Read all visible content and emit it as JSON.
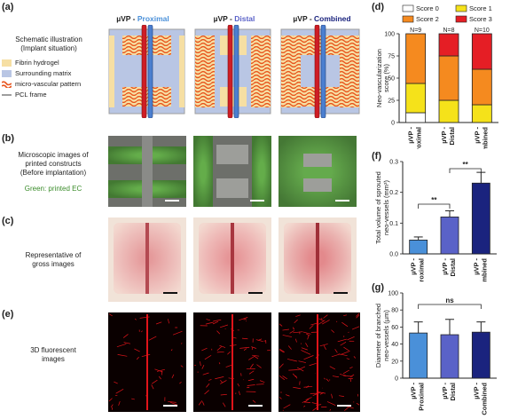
{
  "panels": {
    "a": "(a)",
    "b": "(b)",
    "c": "(c)",
    "d": "(d)",
    "e": "(e)",
    "f": "(f)",
    "g": "(g)"
  },
  "columns": [
    {
      "prefix": "µVP - ",
      "suffix": "Proximal",
      "color": "#4a90d9"
    },
    {
      "prefix": "µVP - ",
      "suffix": "Distal",
      "color": "#5a62c8"
    },
    {
      "prefix": "µVP - ",
      "suffix": "Combined",
      "color": "#1a237e"
    }
  ],
  "legend_a": {
    "title_line1": "Schematic illustration",
    "title_line2": "(Implant situation)",
    "items": [
      {
        "label": "Fibrin hydrogel",
        "color": "#f6dfa3"
      },
      {
        "label": "Surrounding matrix",
        "color": "#b9c6e4"
      },
      {
        "label": "micro-vascular pattern",
        "color": "#e8541d"
      },
      {
        "label": "PCL frame",
        "color": "#9e9e9e"
      }
    ]
  },
  "row_b": {
    "line1": "Microscopic images of",
    "line2": "printed constructs",
    "line3": "(Before implantation)",
    "note": "Green: printed EC",
    "note_color": "#3a8c2a"
  },
  "row_c": {
    "line1": "Representative of",
    "line2": "gross images"
  },
  "row_e": {
    "line1": "3D fluorescent",
    "line2": "images"
  },
  "chart_data": [
    {
      "panel": "d",
      "type": "bar",
      "stacked": true,
      "categories": [
        "µVP - Proximal",
        "µVP - Distal",
        "µVP - Combined"
      ],
      "n_labels": [
        "N=9",
        "N=8",
        "N=10"
      ],
      "series": [
        {
          "name": "Score 0",
          "color": "#ffffff",
          "values": [
            11,
            0,
            0
          ]
        },
        {
          "name": "Score 1",
          "color": "#f5e21a",
          "values": [
            33,
            25,
            20
          ]
        },
        {
          "name": "Score 2",
          "color": "#f58a1f",
          "values": [
            56,
            50,
            40
          ]
        },
        {
          "name": "Score 3",
          "color": "#e51e25",
          "values": [
            0,
            25,
            40
          ]
        }
      ],
      "ylabel_line1": "Neo-vascularization",
      "ylabel_line2": "score (%)",
      "ylim": [
        0,
        100
      ],
      "yticks": [
        0,
        25,
        50,
        75,
        100
      ],
      "legend_placement": "top"
    },
    {
      "panel": "f",
      "type": "bar",
      "categories": [
        "µVP - Proximal",
        "µVP - Distal",
        "µVP - Combined"
      ],
      "values": [
        0.045,
        0.12,
        0.23
      ],
      "errors": [
        0.01,
        0.02,
        0.035
      ],
      "colors": [
        "#4a90d9",
        "#5a62c8",
        "#1a237e"
      ],
      "ylabel_line1": "Total volume of sprouted",
      "ylabel_line2": "neo-vessels (mm³)",
      "ylim": [
        0,
        0.3
      ],
      "yticks": [
        0.0,
        0.1,
        0.2,
        0.3
      ],
      "significance": [
        {
          "from": 0,
          "to": 1,
          "label": "**"
        },
        {
          "from": 1,
          "to": 2,
          "label": "**"
        }
      ]
    },
    {
      "panel": "g",
      "type": "bar",
      "categories": [
        "µVP - Proximal",
        "µVP - Distal",
        "µVP - Combined"
      ],
      "values": [
        53,
        51,
        54
      ],
      "errors": [
        13,
        18,
        12
      ],
      "colors": [
        "#4a90d9",
        "#5a62c8",
        "#1a237e"
      ],
      "ylabel_line1": "Diameter of branched",
      "ylabel_line2": "neo-vessels (µm)",
      "ylim": [
        0,
        100
      ],
      "yticks": [
        0,
        20,
        40,
        60,
        80,
        100
      ],
      "significance": [
        {
          "from": 0,
          "to": 2,
          "label": "ns"
        }
      ]
    }
  ]
}
